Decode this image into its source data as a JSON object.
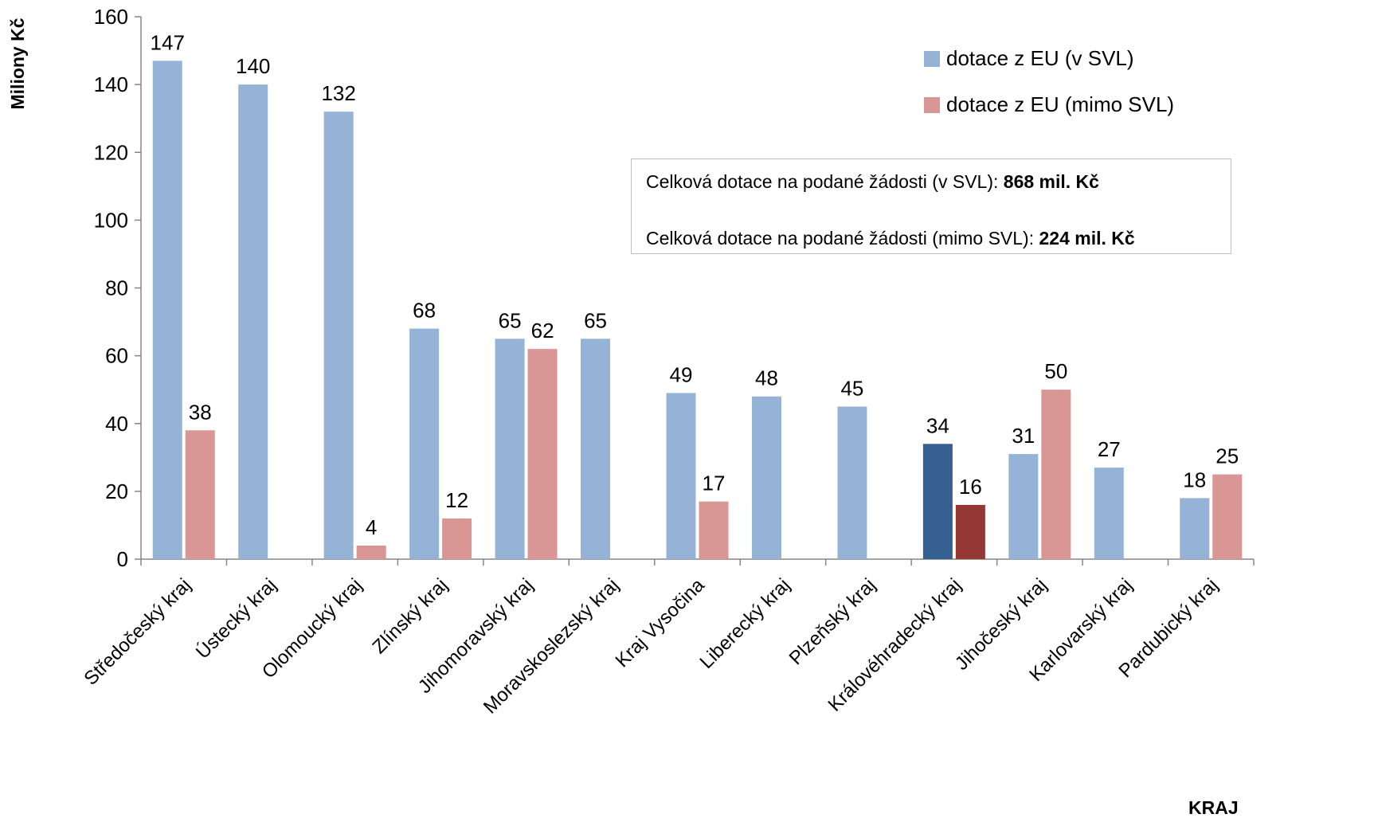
{
  "chart_data": {
    "type": "bar",
    "ylabel": "Miliony Kč",
    "xlabel": "KRAJ",
    "ylim": [
      0,
      160
    ],
    "yticks": [
      0,
      20,
      40,
      60,
      80,
      100,
      120,
      140,
      160
    ],
    "grid": false,
    "legend_position": "top-right",
    "categories": [
      "Středočeský kraj",
      "Ústecký kraj",
      "Olomoucký kraj",
      "Zlínský kraj",
      "Jihomoravský kraj",
      "Moravskoslezský kraj",
      "Kraj Vysočina",
      "Liberecký kraj",
      "Plzeňský kraj",
      "Královéhradecký kraj",
      "Jihočeský kraj",
      "Karlovarský kraj",
      "Pardubický kraj"
    ],
    "series": [
      {
        "name": "dotace z EU (v SVL)",
        "color": "#95b3d7",
        "values": [
          147,
          140,
          132,
          68,
          65,
          65,
          49,
          48,
          45,
          34,
          31,
          27,
          18
        ],
        "labels": [
          "147",
          "140",
          "132",
          "68",
          "65",
          "65",
          "49",
          "48",
          "45",
          "34",
          "31",
          "27",
          "18"
        ]
      },
      {
        "name": "dotace z EU (mimo SVL)",
        "color": "#d99694",
        "values": [
          38,
          null,
          4,
          12,
          62,
          null,
          17,
          null,
          null,
          16,
          50,
          null,
          25
        ],
        "labels": [
          "38",
          "",
          "4",
          "12",
          "62",
          "",
          "17",
          "",
          "",
          "16",
          "50",
          "",
          "25"
        ]
      }
    ],
    "highlight": {
      "category": "Královéhradecký kraj",
      "colors": [
        "#376092",
        "#953735"
      ]
    }
  },
  "annotation": {
    "line1_text": "Celková dotace na podané žádosti (v SVL): ",
    "line1_value": "868 mil. Kč",
    "line2_text": "Celková dotace na podané žádosti (mimo SVL): ",
    "line2_value": "224 mil. Kč"
  }
}
